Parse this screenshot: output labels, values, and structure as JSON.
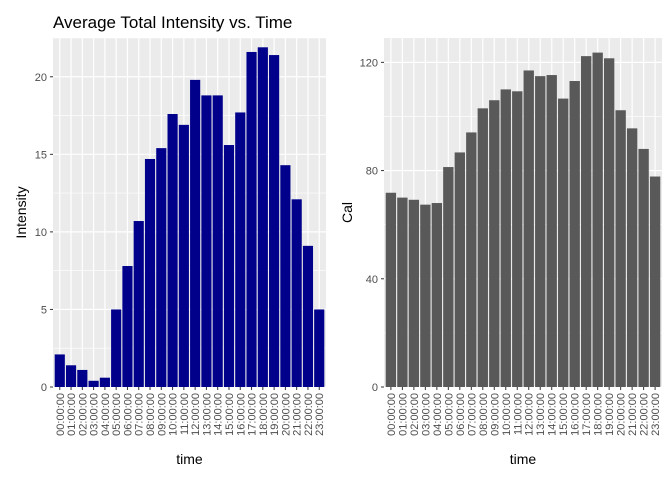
{
  "chart_data": [
    {
      "type": "bar",
      "title": "Average Total Intensity vs. Time",
      "xlabel": "time",
      "ylabel": "Intensity",
      "categories": [
        "00:00:00",
        "01:00:00",
        "02:00:00",
        "03:00:00",
        "04:00:00",
        "05:00:00",
        "06:00:00",
        "07:00:00",
        "08:00:00",
        "09:00:00",
        "10:00:00",
        "11:00:00",
        "12:00:00",
        "13:00:00",
        "14:00:00",
        "15:00:00",
        "16:00:00",
        "17:00:00",
        "18:00:00",
        "19:00:00",
        "20:00:00",
        "21:00:00",
        "22:00:00",
        "23:00:00"
      ],
      "values": [
        2.1,
        1.4,
        1.1,
        0.4,
        0.6,
        5.0,
        7.8,
        10.7,
        14.7,
        15.4,
        17.6,
        16.9,
        19.8,
        18.8,
        18.8,
        15.6,
        17.7,
        21.6,
        21.9,
        21.4,
        14.3,
        12.1,
        9.1,
        5.0
      ],
      "ylim": [
        0,
        22.5
      ],
      "yticks": [
        0,
        5,
        10,
        15,
        20
      ],
      "bar_color": "#00008B",
      "panel_bg": "#EBEBEB",
      "grid": true
    },
    {
      "type": "bar",
      "title": "",
      "xlabel": "time",
      "ylabel": "Cal",
      "categories": [
        "00:00:00",
        "01:00:00",
        "02:00:00",
        "03:00:00",
        "04:00:00",
        "05:00:00",
        "06:00:00",
        "07:00:00",
        "08:00:00",
        "09:00:00",
        "10:00:00",
        "11:00:00",
        "12:00:00",
        "13:00:00",
        "14:00:00",
        "15:00:00",
        "16:00:00",
        "17:00:00",
        "18:00:00",
        "19:00:00",
        "20:00:00",
        "21:00:00",
        "22:00:00",
        "23:00:00"
      ],
      "values": [
        71.8,
        70.0,
        69.2,
        67.4,
        68.0,
        81.3,
        86.7,
        94.1,
        103.0,
        106.0,
        110.0,
        109.3,
        117.0,
        114.9,
        115.3,
        106.6,
        113.1,
        122.3,
        123.6,
        121.5,
        102.3,
        95.6,
        88.0,
        77.8
      ],
      "ylim": [
        0,
        129
      ],
      "yticks": [
        0,
        40,
        80,
        120
      ],
      "bar_color": "#595959",
      "panel_bg": "#EBEBEB",
      "grid": true
    }
  ]
}
